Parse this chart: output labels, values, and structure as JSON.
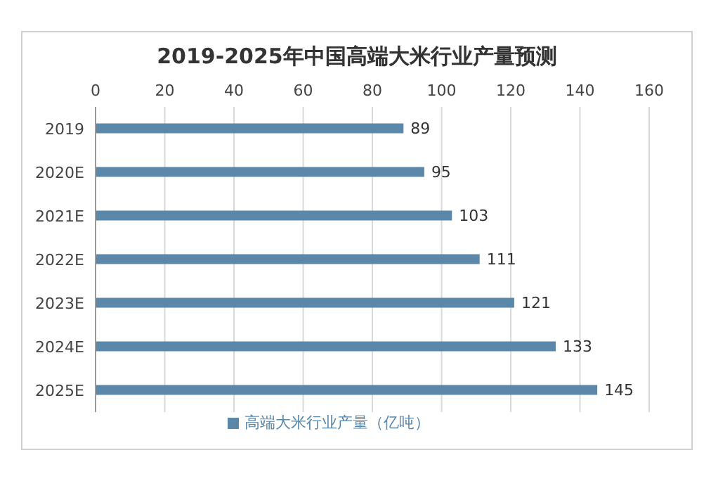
{
  "chart_data": {
    "type": "bar",
    "orientation": "horizontal",
    "title": "2019-2025年中国高端大米行业产量预测",
    "categories": [
      "2019",
      "2020E",
      "2021E",
      "2022E",
      "2023E",
      "2024E",
      "2025E"
    ],
    "series": [
      {
        "name": "高端大米行业产量（亿吨）",
        "color": "#5b87a8",
        "values": [
          89,
          95,
          103,
          111,
          121,
          133,
          145
        ]
      }
    ],
    "xlim": [
      0,
      160
    ],
    "xticks": [
      0,
      20,
      40,
      60,
      80,
      100,
      120,
      140,
      160
    ],
    "grid": "x",
    "legend": "bottom",
    "data_labels": true
  }
}
